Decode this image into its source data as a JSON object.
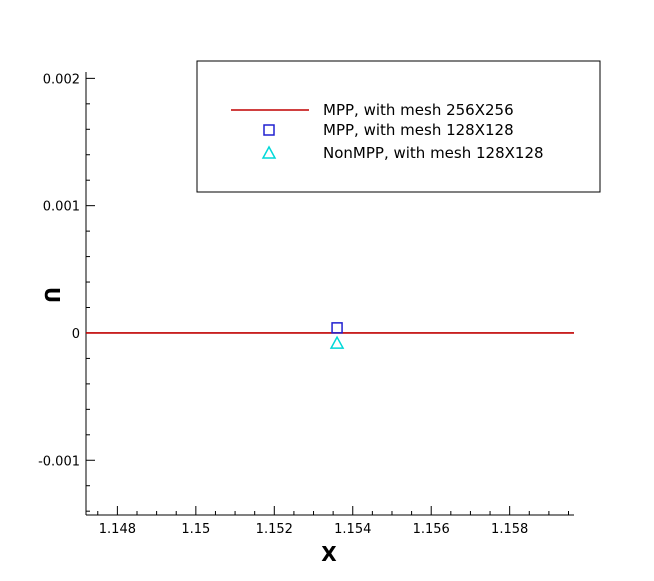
{
  "chart_data": {
    "type": "line",
    "title": "",
    "xlabel": "X",
    "ylabel": "U",
    "xlim": [
      1.1472,
      1.15964
    ],
    "ylim": [
      -0.00143,
      0.00205
    ],
    "x_ticks": [
      1.148,
      1.15,
      1.152,
      1.154,
      1.156,
      1.158
    ],
    "x_tick_labels": [
      "1.148",
      "1.15",
      "1.152",
      "1.154",
      "1.156",
      "1.158"
    ],
    "y_ticks": [
      -0.001,
      0,
      0.001,
      0.002
    ],
    "y_tick_labels": [
      "-0.001",
      "0",
      "0.001",
      "0.002"
    ],
    "x_minor_step": 0.0005,
    "y_minor_step": 0.0002,
    "grid": false,
    "legend_position": "top-right",
    "series": [
      {
        "name": "MPP, with mesh 256X256",
        "style": "line",
        "color": "#c00000",
        "x": [
          1.1472,
          1.15964
        ],
        "y": [
          0,
          0
        ]
      },
      {
        "name": "MPP, with mesh 128X128",
        "style": "square",
        "color": "#2020d0",
        "x": [
          1.1536
        ],
        "y": [
          4e-05
        ]
      },
      {
        "name": "NonMPP, with mesh 128X128",
        "style": "triangle",
        "color": "#00d8d8",
        "x": [
          1.1536
        ],
        "y": [
          -8e-05
        ]
      }
    ]
  }
}
